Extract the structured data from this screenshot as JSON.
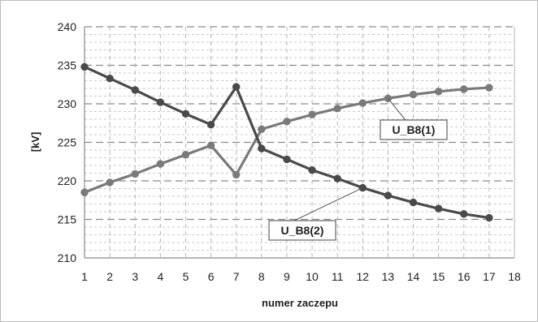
{
  "chart_data": {
    "type": "line",
    "title": "",
    "xlabel": "numer zaczepu",
    "ylabel": "[kV]",
    "xlim": [
      1,
      18
    ],
    "ylim": [
      210,
      240
    ],
    "x_ticks": [
      "1",
      "2",
      "3",
      "4",
      "5",
      "6",
      "7",
      "8",
      "9",
      "10",
      "11",
      "12",
      "13",
      "14",
      "15",
      "16",
      "17",
      "18"
    ],
    "y_ticks": [
      "210",
      "215",
      "220",
      "225",
      "230",
      "235",
      "240"
    ],
    "grid": true,
    "x": [
      1,
      2,
      3,
      4,
      5,
      6,
      7,
      8,
      9,
      10,
      11,
      12,
      13,
      14,
      15,
      16,
      17
    ],
    "series": [
      {
        "name": "U_B8(1)",
        "color": "#7a7a7a",
        "values": [
          218.5,
          219.8,
          220.9,
          222.2,
          223.4,
          224.6,
          220.8,
          226.7,
          227.7,
          228.6,
          229.4,
          230.1,
          230.7,
          231.2,
          231.6,
          231.9,
          232.1
        ]
      },
      {
        "name": "U_B8(2)",
        "color": "#4a4a4a",
        "values": [
          234.8,
          233.3,
          231.8,
          230.2,
          228.7,
          227.3,
          232.2,
          224.2,
          222.8,
          221.4,
          220.3,
          219.1,
          218.1,
          217.2,
          216.4,
          215.7,
          215.2
        ]
      }
    ]
  }
}
